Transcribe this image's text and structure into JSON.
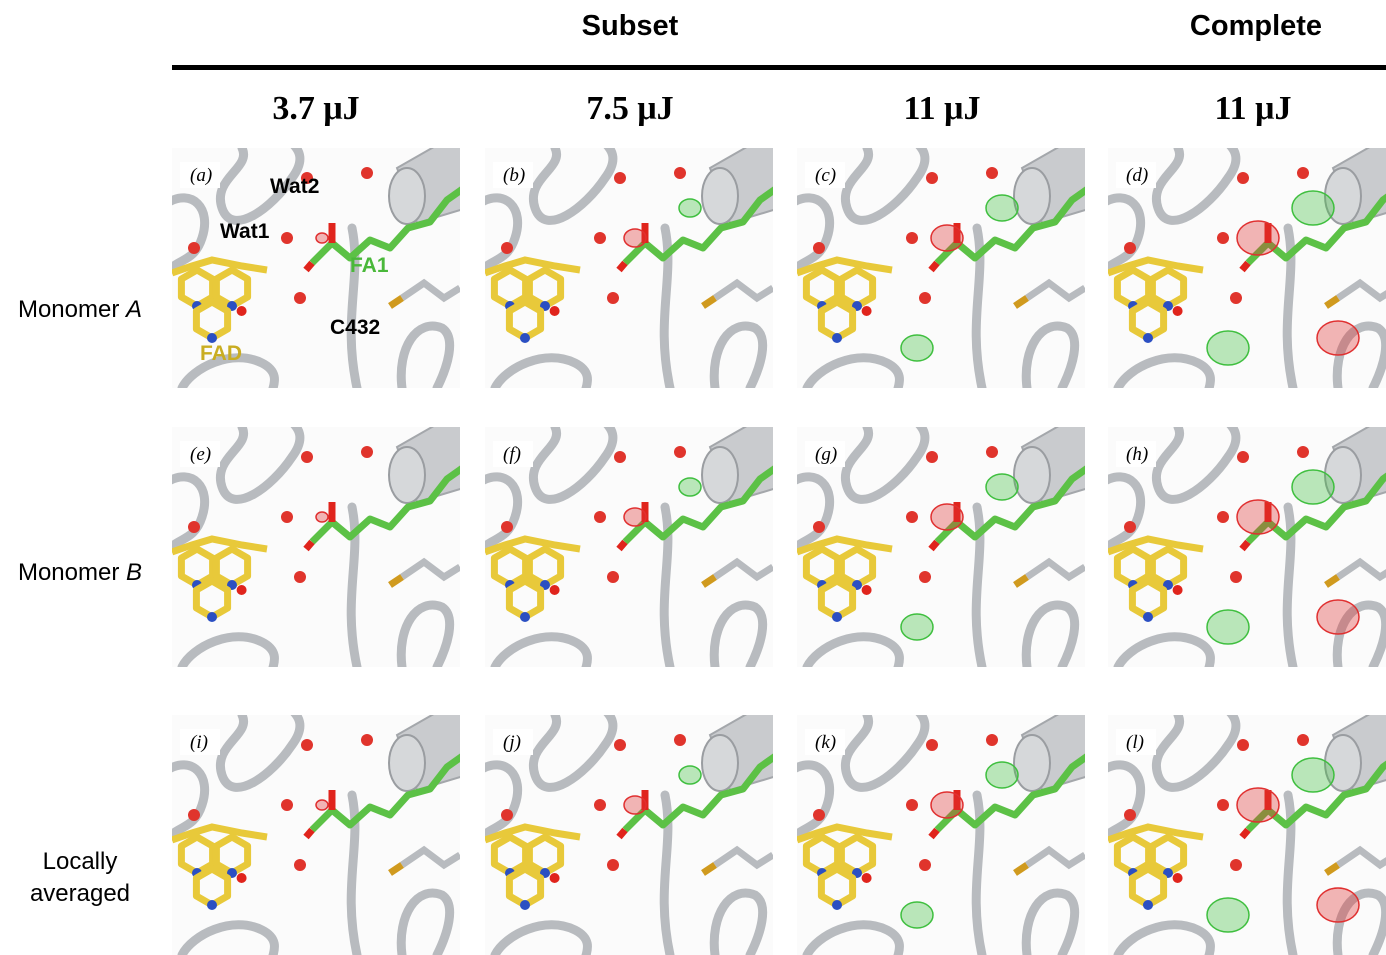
{
  "header": {
    "groups": [
      "Subset",
      "Complete"
    ],
    "columns": [
      "3.7 μJ",
      "7.5 μJ",
      "11 μJ",
      "11 μJ"
    ]
  },
  "rows": [
    {
      "label": "Monomer",
      "italic": "A"
    },
    {
      "label": "Monomer",
      "italic": "B"
    },
    {
      "lines": [
        "Locally",
        "averaged"
      ]
    }
  ],
  "panels": [
    "(a)",
    "(b)",
    "(c)",
    "(d)",
    "(e)",
    "(f)",
    "(g)",
    "(h)",
    "(i)",
    "(j)",
    "(k)",
    "(l)"
  ],
  "annotations": [
    "Wat2",
    "Wat1",
    "FA1",
    "C432",
    "FAD"
  ]
}
